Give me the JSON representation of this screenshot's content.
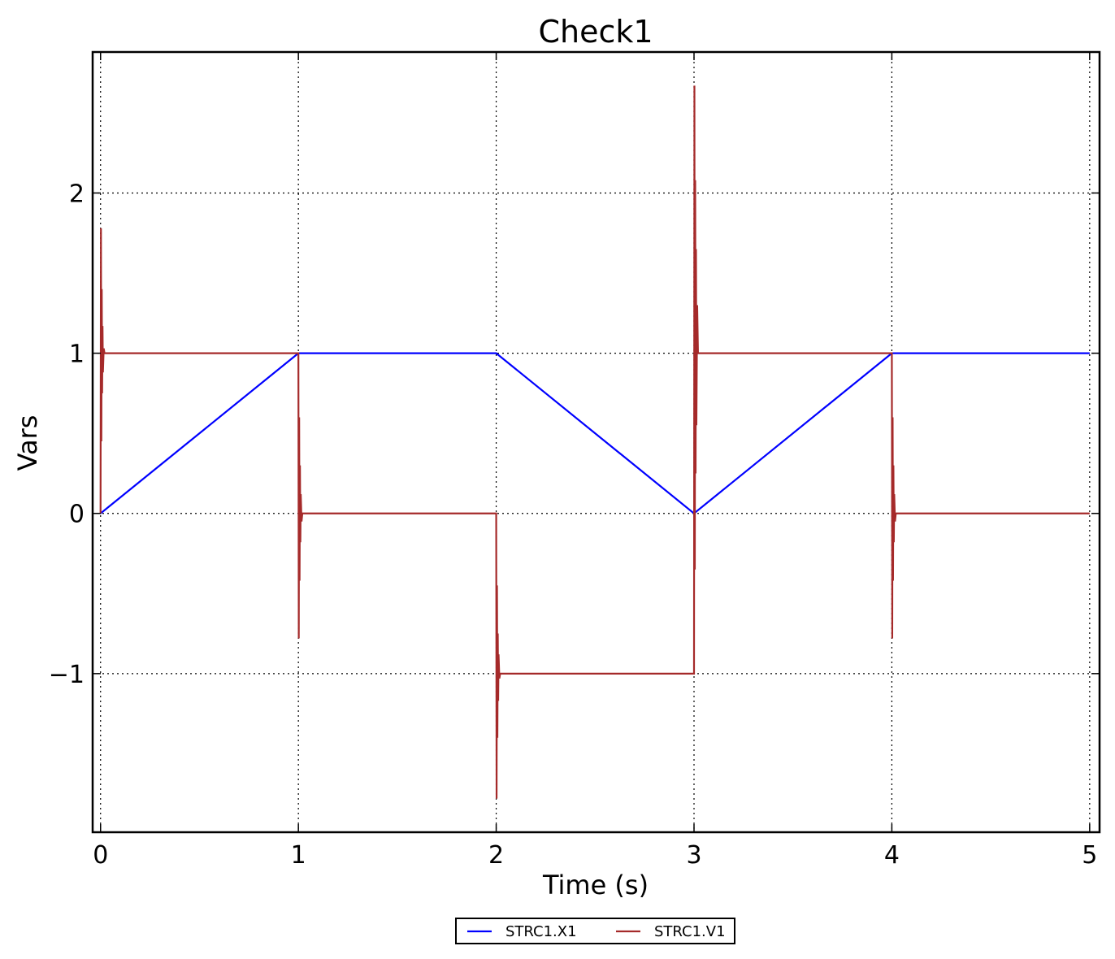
{
  "chart_data": {
    "type": "line",
    "title": "Check1",
    "xlabel": "Time (s)",
    "ylabel": "Vars",
    "xlim": [
      -0.04,
      5.05
    ],
    "ylim": [
      -1.99,
      2.88
    ],
    "xticks": [
      0,
      1,
      2,
      3,
      4,
      5
    ],
    "xtick_labels": [
      "0",
      "1",
      "2",
      "3",
      "4",
      "5"
    ],
    "yticks": [
      -1,
      0,
      1,
      2
    ],
    "ytick_labels": [
      "−1",
      "0",
      "1",
      "2"
    ],
    "grid": true,
    "legend_position": "bottom-center",
    "series": [
      {
        "name": "STRC1.X1",
        "color": "#0000ff",
        "x": [
          0,
          1,
          2,
          3,
          4,
          5
        ],
        "y": [
          0,
          1,
          1,
          0,
          1,
          1
        ]
      },
      {
        "name": "STRC1.V1",
        "color": "#a52a2a",
        "x": [
          0,
          0.002,
          0.004,
          0.006,
          0.008,
          0.01,
          0.012,
          0.016,
          0.02,
          1.0,
          1.002,
          1.004,
          1.006,
          1.008,
          1.01,
          1.012,
          1.016,
          1.02,
          2.0,
          2.002,
          2.004,
          2.006,
          2.008,
          2.01,
          2.012,
          2.016,
          2.02,
          3.0,
          3.002,
          3.004,
          3.006,
          3.008,
          3.01,
          3.012,
          3.016,
          3.02,
          4.0,
          4.002,
          4.004,
          4.006,
          4.008,
          4.01,
          4.012,
          4.016,
          4.02,
          5.0
        ],
        "y": [
          0,
          1.78,
          0.45,
          1.4,
          0.75,
          1.17,
          0.88,
          1.03,
          1,
          1,
          -0.78,
          0.6,
          -0.42,
          0.3,
          -0.18,
          0.12,
          -0.05,
          0,
          0,
          -1.78,
          -0.45,
          -1.4,
          -0.75,
          -1.17,
          -0.88,
          -1.03,
          -1,
          -1,
          2.67,
          -0.35,
          2.08,
          0.25,
          1.65,
          0.55,
          1.3,
          1,
          1,
          -0.78,
          0.6,
          -0.42,
          0.3,
          -0.18,
          0.12,
          -0.05,
          0,
          0
        ]
      }
    ]
  }
}
